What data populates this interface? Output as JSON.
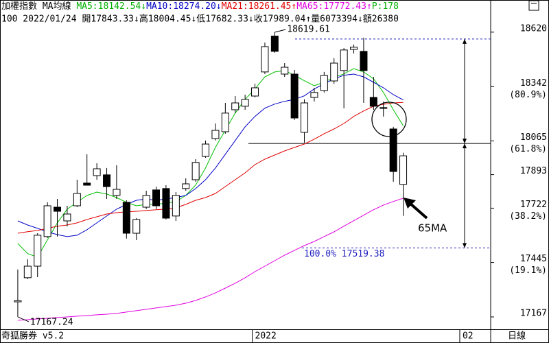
{
  "header": {
    "line1": [
      {
        "text": "加權指數 MA均線 ",
        "color": "#000000"
      },
      {
        "text": "MA5:18142.54↓",
        "color": "#00b000"
      },
      {
        "text": "MA10:18274.20↓",
        "color": "#0000c8"
      },
      {
        "text": "MA21:18261.45↑",
        "color": "#e00000"
      },
      {
        "text": "MA65:17772.43↑",
        "color": "#e000e0"
      },
      {
        "text": "P:178",
        "color": "#00b000"
      }
    ],
    "line2": "100 2022/01/24 開17843.33↓高18004.45↓低17682.33↓收17989.04↑量6073394↓額26380"
  },
  "footer": {
    "left": "奇狐勝券 v5.2",
    "right": "日線"
  },
  "chart_data": {
    "type": "candlestick",
    "open": [
      17244,
      17367,
      17426,
      17577,
      17727,
      17657,
      17734,
      17850,
      17888,
      17892,
      17787,
      17752,
      17594,
      17727,
      17815,
      17822,
      17682,
      17822,
      17867,
      17986,
      18077,
      18112,
      18224,
      18242,
      18294,
      18417,
      18600,
      18406,
      18406,
      18109,
      18287,
      18322,
      18371,
      18424,
      18532,
      18522,
      18287,
      18235,
      18126,
      17843.33
    ],
    "high": [
      17409,
      17461,
      17594,
      17752,
      17769,
      17734,
      17867,
      17997,
      17951,
      17927,
      17941,
      17762,
      17671,
      17811,
      17832,
      17839,
      17804,
      17874,
      17972,
      18067,
      18154,
      18259,
      18294,
      18301,
      18357,
      18567,
      18619.61,
      18462,
      18427,
      18277,
      18336,
      18417,
      18487,
      18539,
      18557,
      18592,
      18392,
      18266,
      18137,
      18004.45
    ],
    "low": [
      17167.24,
      17360,
      17370,
      17570,
      17577,
      17629,
      17727,
      17839,
      17867,
      17769,
      17769,
      17567,
      17559,
      17717,
      17717,
      17664,
      17657,
      17811,
      17857,
      17979,
      18067,
      18102,
      18207,
      18224,
      18287,
      18406,
      18515,
      18392,
      18172,
      18056,
      18266,
      18312,
      18357,
      18231,
      18511,
      18259,
      18224,
      18189,
      17857,
      17682.33
    ],
    "close": [
      17250,
      17426,
      17584,
      17734,
      17706,
      17692,
      17797,
      17839,
      17923,
      17832,
      17818,
      17594,
      17664,
      17787,
      17734,
      17671,
      17787,
      17846,
      17955,
      18049,
      18119,
      18207,
      18259,
      18277,
      18336,
      18546,
      18522,
      18441,
      18182,
      18259,
      18312,
      18399,
      18462,
      18529,
      18543,
      18424,
      18242,
      18231,
      17909,
      17989.04
    ],
    "series": [
      {
        "color": "#00c000",
        "values": [
          17542,
          17490,
          17472,
          17560,
          17647,
          17717,
          17752,
          17787,
          17804,
          17794,
          17776,
          17752,
          17734,
          17741,
          17741,
          17748,
          17755,
          17787,
          17840,
          17927,
          18032,
          18120,
          18207,
          18277,
          18330,
          18392,
          18417,
          18424,
          18400,
          18372,
          18347,
          18365,
          18389,
          18407,
          18434,
          18417,
          18382,
          18312,
          18224,
          18142.54
        ]
      },
      {
        "color": "#0000c8",
        "values": [
          17657,
          17636,
          17619,
          17601,
          17587,
          17577,
          17584,
          17612,
          17647,
          17682,
          17717,
          17741,
          17762,
          17769,
          17762,
          17769,
          17776,
          17787,
          17822,
          17867,
          17927,
          17997,
          18067,
          18137,
          18190,
          18232,
          18253,
          18267,
          18277,
          18295,
          18330,
          18357,
          18382,
          18400,
          18406,
          18392,
          18364,
          18336,
          18301,
          18274.2
        ]
      },
      {
        "color": "#e00000",
        "values": [
          17594,
          17602,
          17608,
          17619,
          17630,
          17636,
          17647,
          17664,
          17678,
          17692,
          17699,
          17703,
          17706,
          17710,
          17714,
          17717,
          17724,
          17741,
          17762,
          17776,
          17797,
          17832,
          17867,
          17902,
          17944,
          17972,
          17993,
          18014,
          18032,
          18049,
          18074,
          18102,
          18126,
          18154,
          18190,
          18218,
          18242,
          18252,
          18259,
          18261.45
        ]
      },
      {
        "color": "#e000e0",
        "values": [
          17150,
          17153,
          17157,
          17160,
          17164,
          17167,
          17171,
          17174,
          17178,
          17181,
          17185,
          17192,
          17199,
          17206,
          17213,
          17220,
          17227,
          17237,
          17251,
          17269,
          17290,
          17314,
          17339,
          17367,
          17398,
          17426,
          17454,
          17482,
          17507,
          17531,
          17552,
          17577,
          17601,
          17630,
          17658,
          17686,
          17714,
          17738,
          17756,
          17772.43
        ]
      }
    ],
    "xlim": [
      -1.8,
      47.85
    ],
    "xticks": [
      {
        "value": 24,
        "label": "2022"
      },
      {
        "value": 45,
        "label": "02"
      }
    ],
    "ylim": [
      17104,
      18721
    ],
    "yticks": [
      18620,
      18342,
      18065,
      17893,
      17722,
      17445,
      17167
    ],
    "ytick_notes": [
      null,
      "(80.9%)",
      "(61.8%)",
      null,
      "(38.2%)",
      "(19.1%)",
      null
    ],
    "ref_lines": [
      18585,
      18052,
      17519.38
    ],
    "annotations": [
      {
        "text": "18619.61",
        "value": 18619.61
      },
      {
        "text": "17167.24",
        "value": 17167.24
      },
      {
        "text": "100.0% 17519.38",
        "value": 17519.38
      },
      {
        "text": "65MA"
      }
    ]
  }
}
